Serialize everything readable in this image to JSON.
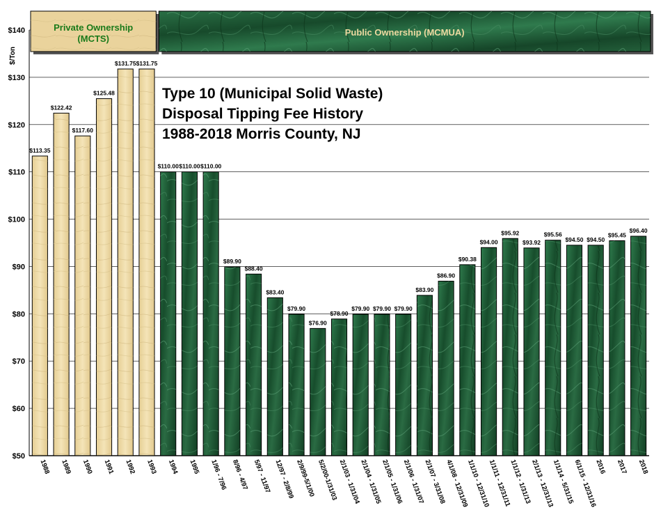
{
  "chart_data": {
    "type": "bar",
    "title_lines": [
      "Type 10 (Municipal Solid Waste)",
      "Disposal Tipping Fee History",
      "1988-2018 Morris County, NJ"
    ],
    "ylabel": "$/Ton",
    "xlabel": "",
    "ylim": [
      50,
      140
    ],
    "yticks": [
      "$50",
      "$60",
      "$70",
      "$80",
      "$90",
      "$100",
      "$110",
      "$120",
      "$130",
      "$140"
    ],
    "ytick_values": [
      50,
      60,
      70,
      80,
      90,
      100,
      110,
      120,
      130,
      140
    ],
    "grid": true,
    "categories": [
      "1988",
      "1989",
      "1990",
      "1991",
      "1992",
      "1993",
      "1994",
      "1995",
      "1/96 - 7/96",
      "8/96 - 4/97",
      "5/97 - 11/97",
      "12/97 - 2/8/99",
      "2/9/99-5/1/00",
      "5/2/00-1/31/03",
      "2/1/03 - 1/31/04",
      "2/1/04 - 1/31/05",
      "2/1/05 - 1/31/06",
      "2/1/06 - 1/31/07",
      "2/1/07 - 3/31/08",
      "4/1/08 - 12/31/09",
      "1/1/10 - 12/31/10",
      "1/1/11 - 12/31/11",
      "1/1/12 - 1/31/13",
      "2/1/13 - 12/31/13",
      "1/1/14 - 5/31/15",
      "6/1/15 - 12/31/16",
      "2016",
      "2017",
      "2018"
    ],
    "values": [
      113.35,
      122.42,
      117.6,
      125.48,
      131.75,
      131.75,
      110.0,
      110.0,
      110.0,
      89.9,
      88.4,
      83.4,
      79.9,
      76.9,
      78.9,
      79.9,
      79.9,
      79.9,
      83.9,
      86.9,
      90.38,
      94.0,
      95.92,
      93.92,
      95.56,
      94.5,
      94.5,
      95.45,
      96.4
    ],
    "data_labels": [
      "$113.35",
      "$122.42",
      "$117.60",
      "$125.48",
      "$131.75",
      "$131.75",
      "$110.00",
      "$110.00",
      "$110.00",
      "$89.90",
      "$88.40",
      "$83.40",
      "$79.90",
      "$76.90",
      "$78.90",
      "$79.90",
      "$79.90",
      "$79.90",
      "$83.90",
      "$86.90",
      "$90.38",
      "$94.00",
      "$95.92",
      "$93.92",
      "$95.56",
      "$94.50",
      "$94.50",
      "$95.45",
      "$96.40"
    ],
    "ownership": [
      "private",
      "private",
      "private",
      "private",
      "private",
      "private",
      "public",
      "public",
      "public",
      "public",
      "public",
      "public",
      "public",
      "public",
      "public",
      "public",
      "public",
      "public",
      "public",
      "public",
      "public",
      "public",
      "public",
      "public",
      "public",
      "public",
      "public",
      "public",
      "public"
    ],
    "banners": {
      "private": {
        "lines": [
          "Private Ownership",
          "(MCTS)"
        ],
        "count": 6
      },
      "public": {
        "lines": [
          "Public Ownership (MCMUA)"
        ],
        "count": 23
      }
    },
    "colors": {
      "private_bar": "#efdcaa",
      "public_bar": "#1e5c37",
      "public_bar_highlight": "#3d8a5a",
      "private_banner_text": "#1a7a1a",
      "public_banner_text": "#ecd9a0",
      "grid": "#000000"
    }
  }
}
